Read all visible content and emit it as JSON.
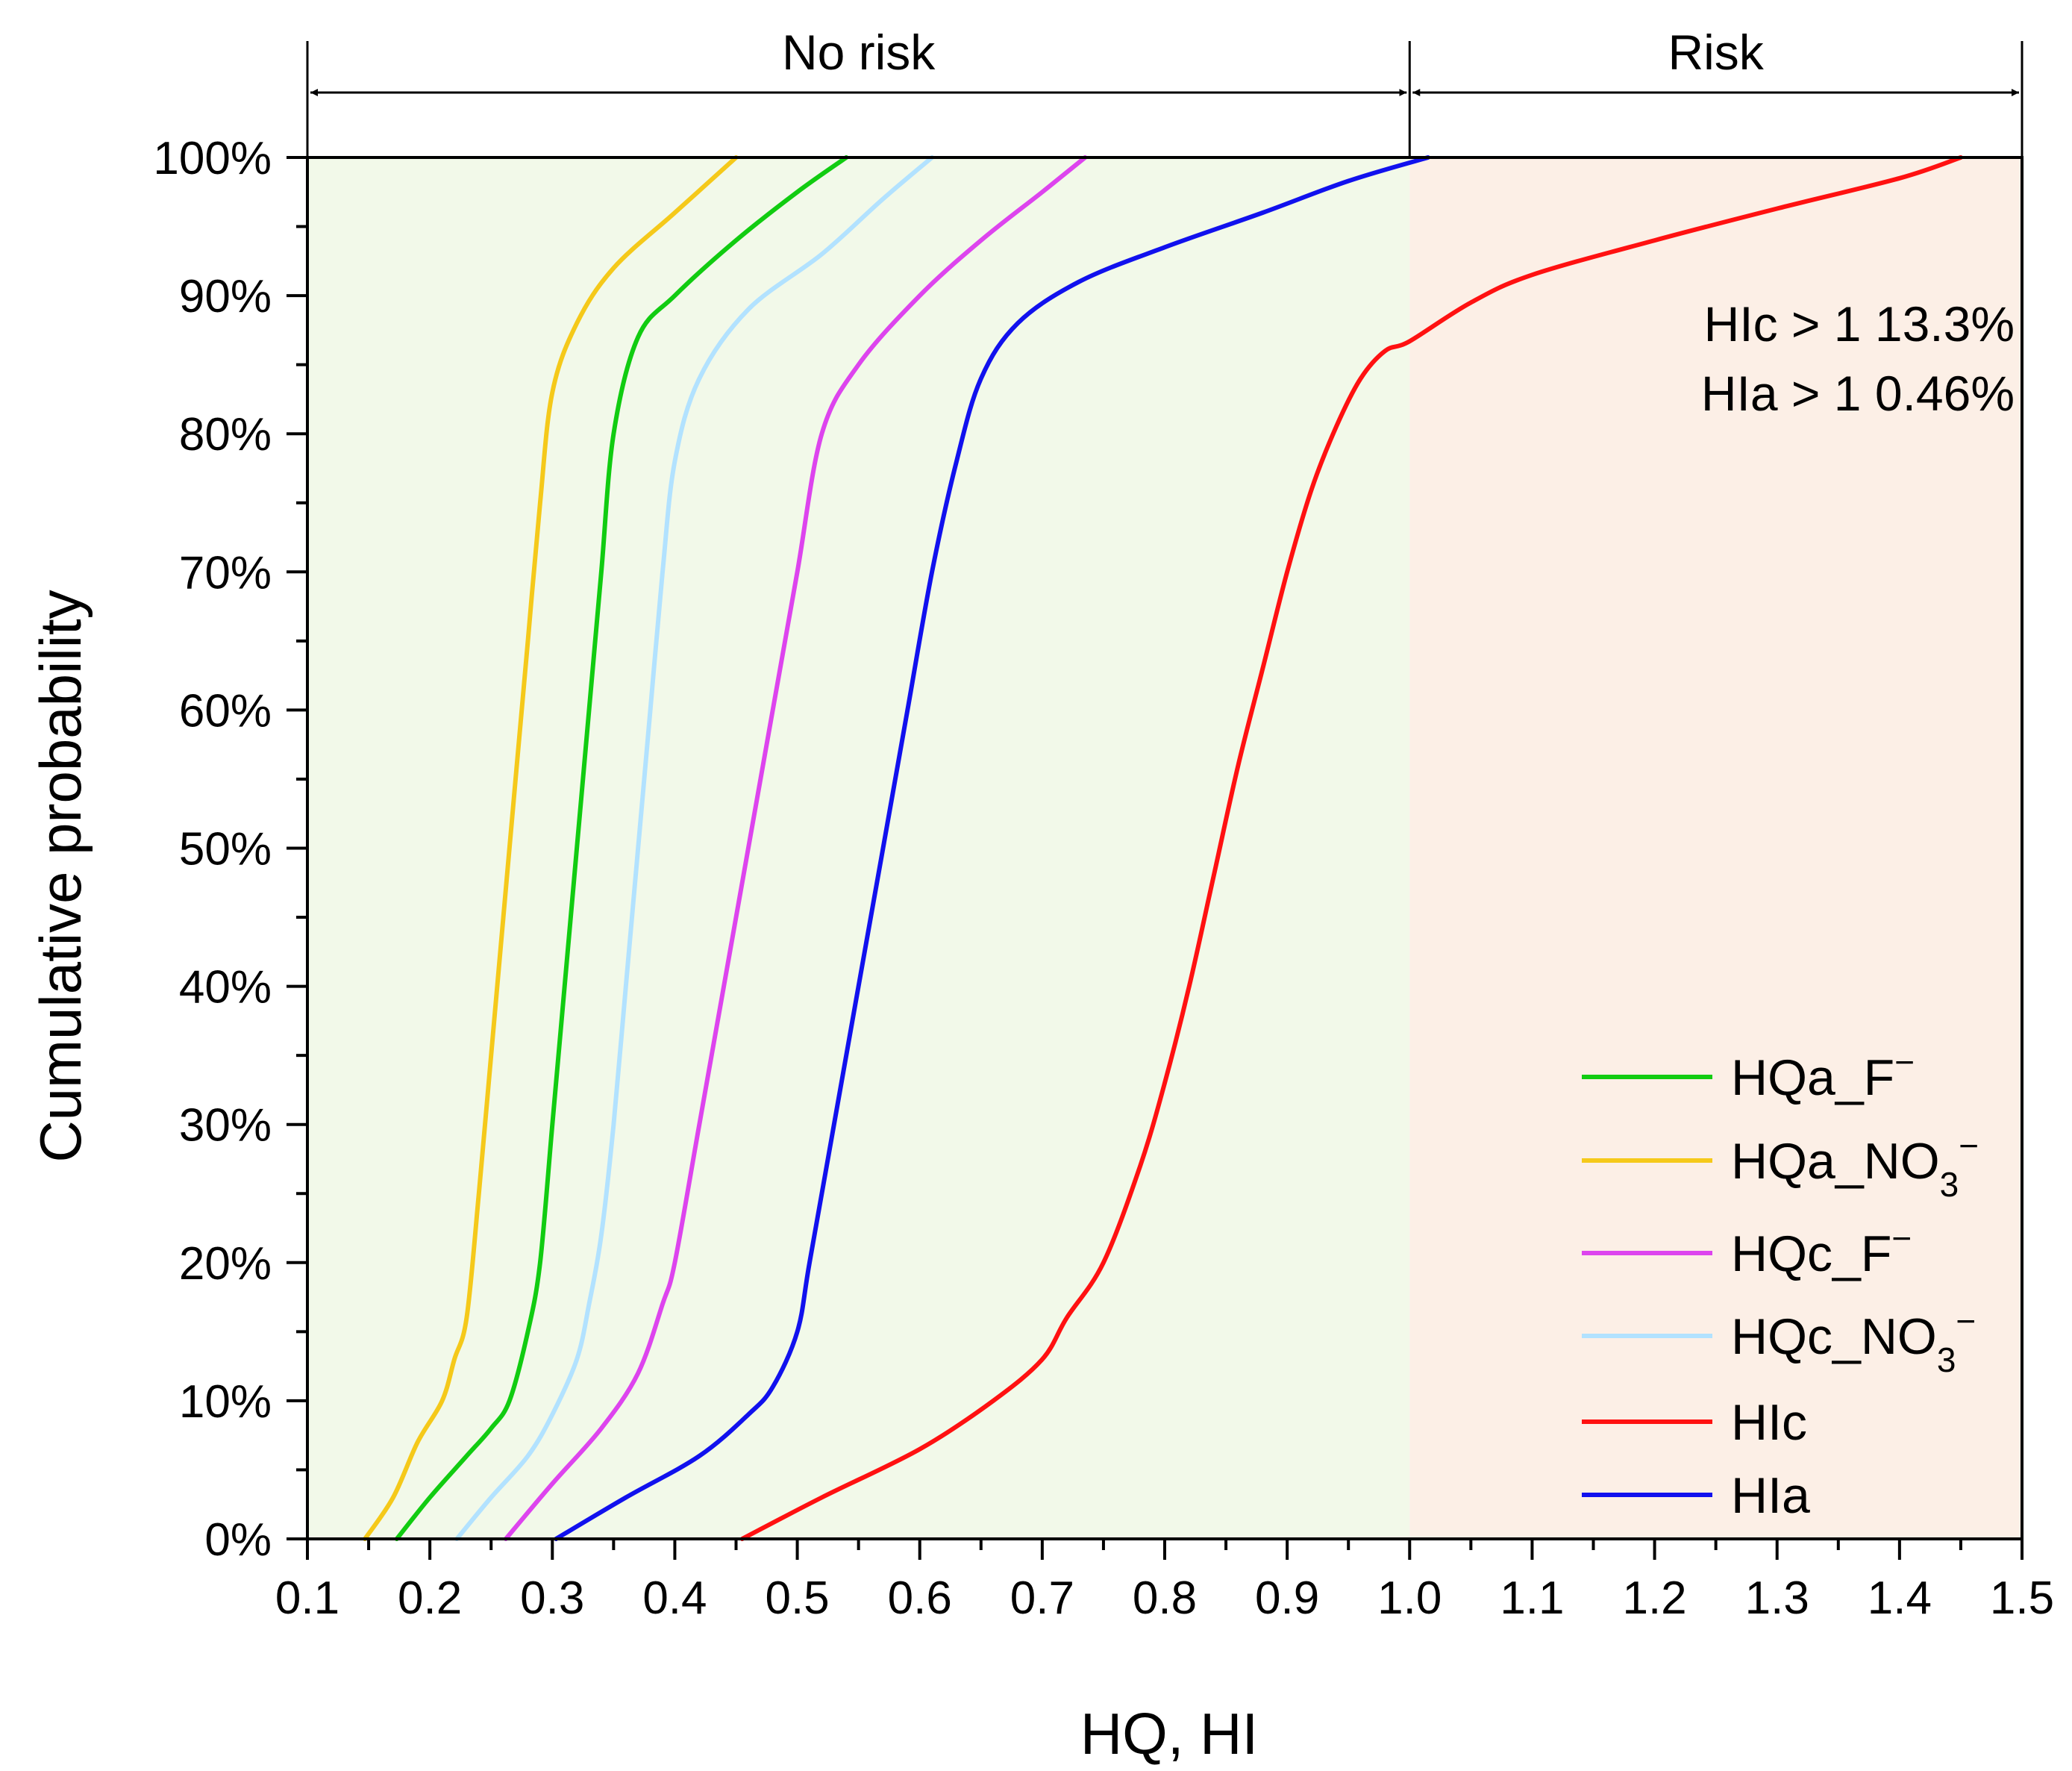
{
  "chart_data": {
    "type": "line",
    "xlabel": "HQ, HI",
    "ylabel": "Cumulative probability",
    "xlim": [
      0.1,
      1.5
    ],
    "ylim": [
      0,
      100
    ],
    "xticks": [
      0.1,
      0.2,
      0.3,
      0.4,
      0.5,
      0.6,
      0.7,
      0.8,
      0.9,
      1.0,
      1.1,
      1.2,
      1.3,
      1.4,
      1.5
    ],
    "xtick_labels": [
      "0.1",
      "0.2",
      "0.3",
      "0.4",
      "0.5",
      "0.6",
      "0.7",
      "0.8",
      "0.9",
      "1.0",
      "1.1",
      "1.2",
      "1.3",
      "1.4",
      "1.5"
    ],
    "yticks": [
      0,
      10,
      20,
      30,
      40,
      50,
      60,
      70,
      80,
      90,
      100
    ],
    "ytick_labels": [
      "0%",
      "10%",
      "20%",
      "30%",
      "40%",
      "50%",
      "60%",
      "70%",
      "80%",
      "90%",
      "100%"
    ],
    "grid": false,
    "legend_position": "bottom-right",
    "regions": [
      {
        "label": "No risk",
        "x_from": 0.1,
        "x_to": 1.0,
        "color": "#f2f9e9"
      },
      {
        "label": "Risk",
        "x_from": 1.0,
        "x_to": 1.5,
        "color": "#fcefe6"
      }
    ],
    "annotations": [
      {
        "id": "hic",
        "prefix": "HIc > 1",
        "value": "13.3%"
      },
      {
        "id": "hia",
        "prefix": "HIa > 1",
        "value": "0.46%"
      }
    ],
    "series": [
      {
        "name": "HQa_F",
        "superscript": "−",
        "color": "#11cc11",
        "points": [
          [
            0.173,
            0
          ],
          [
            0.2,
            3
          ],
          [
            0.23,
            6
          ],
          [
            0.25,
            8
          ],
          [
            0.265,
            10
          ],
          [
            0.28,
            15
          ],
          [
            0.29,
            20
          ],
          [
            0.3,
            30
          ],
          [
            0.31,
            40
          ],
          [
            0.32,
            50
          ],
          [
            0.33,
            60
          ],
          [
            0.34,
            70
          ],
          [
            0.35,
            80
          ],
          [
            0.37,
            87
          ],
          [
            0.4,
            90
          ],
          [
            0.45,
            94
          ],
          [
            0.5,
            97.5
          ],
          [
            0.54,
            100
          ]
        ]
      },
      {
        "name": "HQa_NO",
        "subscript": "3",
        "superscript": "−",
        "color": "#f5c91a",
        "points": [
          [
            0.147,
            0
          ],
          [
            0.17,
            3
          ],
          [
            0.19,
            7
          ],
          [
            0.21,
            10
          ],
          [
            0.22,
            13
          ],
          [
            0.23,
            16
          ],
          [
            0.24,
            25
          ],
          [
            0.25,
            35
          ],
          [
            0.26,
            45
          ],
          [
            0.27,
            55
          ],
          [
            0.28,
            65
          ],
          [
            0.29,
            75
          ],
          [
            0.3,
            83
          ],
          [
            0.32,
            88
          ],
          [
            0.35,
            92
          ],
          [
            0.4,
            96
          ],
          [
            0.45,
            100
          ]
        ]
      },
      {
        "name": "HQc_F",
        "superscript": "−",
        "color": "#dd44ee",
        "points": [
          [
            0.262,
            0
          ],
          [
            0.3,
            4
          ],
          [
            0.34,
            8
          ],
          [
            0.37,
            12
          ],
          [
            0.39,
            17
          ],
          [
            0.4,
            20
          ],
          [
            0.42,
            30
          ],
          [
            0.44,
            40
          ],
          [
            0.46,
            50
          ],
          [
            0.48,
            60
          ],
          [
            0.5,
            70
          ],
          [
            0.52,
            80
          ],
          [
            0.55,
            85
          ],
          [
            0.6,
            90
          ],
          [
            0.65,
            94
          ],
          [
            0.7,
            97.5
          ],
          [
            0.735,
            100
          ]
        ]
      },
      {
        "name": "HQc_NO",
        "subscript": "3",
        "superscript": "−",
        "color": "#b2e2ff",
        "points": [
          [
            0.222,
            0
          ],
          [
            0.25,
            3
          ],
          [
            0.28,
            6
          ],
          [
            0.3,
            9
          ],
          [
            0.32,
            13
          ],
          [
            0.33,
            17
          ],
          [
            0.34,
            22
          ],
          [
            0.35,
            30
          ],
          [
            0.36,
            40
          ],
          [
            0.37,
            50
          ],
          [
            0.38,
            60
          ],
          [
            0.39,
            70
          ],
          [
            0.4,
            78
          ],
          [
            0.42,
            84
          ],
          [
            0.46,
            89
          ],
          [
            0.52,
            93
          ],
          [
            0.57,
            97
          ],
          [
            0.61,
            100
          ]
        ]
      },
      {
        "name": "HIc",
        "color": "#ff1111",
        "points": [
          [
            0.455,
            0
          ],
          [
            0.52,
            3
          ],
          [
            0.6,
            6.5
          ],
          [
            0.66,
            10
          ],
          [
            0.7,
            13
          ],
          [
            0.72,
            16
          ],
          [
            0.75,
            20
          ],
          [
            0.78,
            27
          ],
          [
            0.8,
            33
          ],
          [
            0.82,
            40
          ],
          [
            0.84,
            48
          ],
          [
            0.86,
            56
          ],
          [
            0.88,
            63
          ],
          [
            0.9,
            70
          ],
          [
            0.92,
            76
          ],
          [
            0.94,
            80.5
          ],
          [
            0.96,
            84
          ],
          [
            0.98,
            86
          ],
          [
            1.0,
            86.7
          ],
          [
            1.05,
            89.5
          ],
          [
            1.1,
            91.5
          ],
          [
            1.2,
            94
          ],
          [
            1.3,
            96.3
          ],
          [
            1.4,
            98.5
          ],
          [
            1.45,
            100
          ]
        ]
      },
      {
        "name": "HIa",
        "color": "#1111ee",
        "points": [
          [
            0.303,
            0
          ],
          [
            0.36,
            3
          ],
          [
            0.42,
            6
          ],
          [
            0.46,
            9
          ],
          [
            0.48,
            11
          ],
          [
            0.5,
            15
          ],
          [
            0.51,
            20
          ],
          [
            0.53,
            30
          ],
          [
            0.55,
            40
          ],
          [
            0.57,
            50
          ],
          [
            0.59,
            60
          ],
          [
            0.61,
            70
          ],
          [
            0.63,
            78
          ],
          [
            0.65,
            84
          ],
          [
            0.68,
            88
          ],
          [
            0.73,
            91
          ],
          [
            0.8,
            93.5
          ],
          [
            0.88,
            96
          ],
          [
            0.95,
            98.3
          ],
          [
            1.015,
            100
          ]
        ]
      }
    ]
  }
}
